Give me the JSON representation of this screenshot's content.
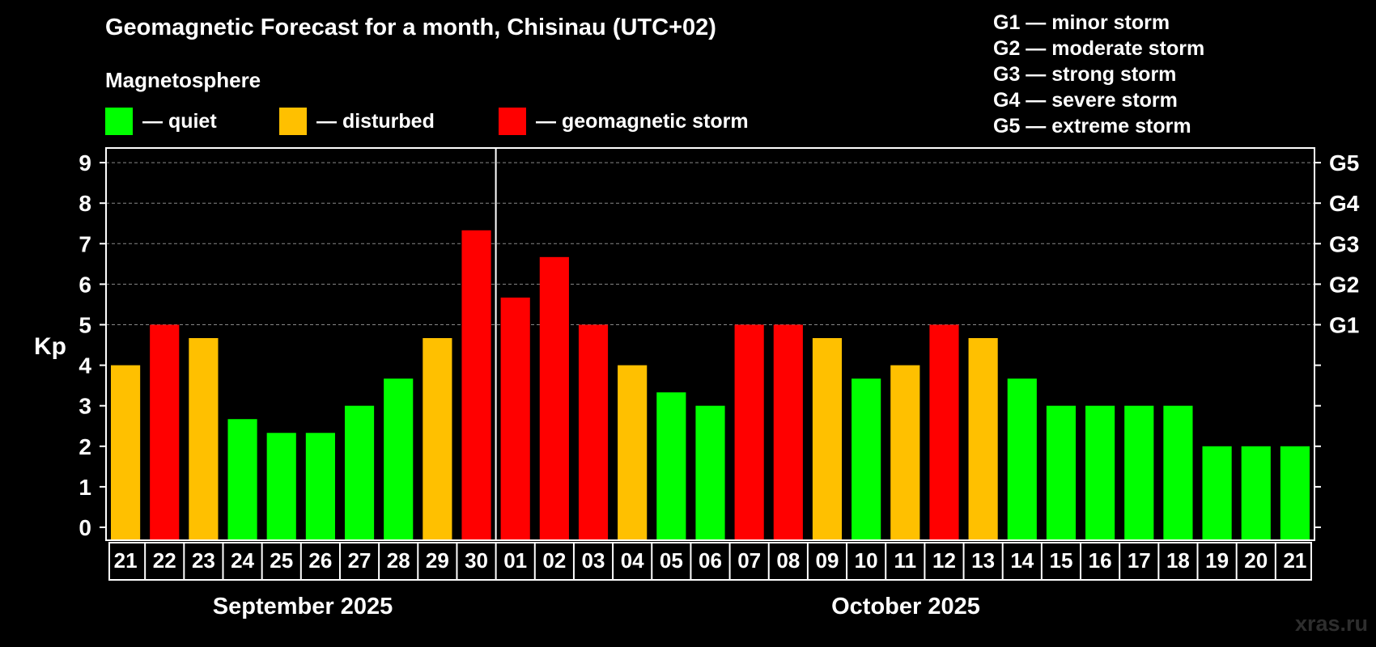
{
  "title": "Geomagnetic Forecast for a month, Chisinau (UTC+02)",
  "legend": {
    "heading": "Magnetosphere",
    "items": [
      {
        "label": "— quiet",
        "color": "#00ff00"
      },
      {
        "label": "— disturbed",
        "color": "#ffc000"
      },
      {
        "label": "— geomagnetic storm",
        "color": "#ff0000"
      }
    ]
  },
  "storm_scale": [
    "G1 — minor storm",
    "G2 — moderate storm",
    "G3 — strong storm",
    "G4 — severe storm",
    "G5 — extreme storm"
  ],
  "months": [
    "September 2025",
    "October 2025"
  ],
  "watermark": "xras.ru",
  "colors": {
    "quiet": "#00ff00",
    "disturbed": "#ffc000",
    "storm": "#ff0000",
    "background": "#000000",
    "axis": "#ffffff",
    "grid": "#888888"
  },
  "chart_data": {
    "type": "bar",
    "title": "Geomagnetic Forecast for a month, Chisinau (UTC+02)",
    "ylabel": "Kp",
    "ylim": [
      0,
      9
    ],
    "yticks": [
      "0",
      "1",
      "2",
      "3",
      "4",
      "5",
      "6",
      "7",
      "8",
      "9"
    ],
    "right_ticks": [
      {
        "kp": 5,
        "label": "G1"
      },
      {
        "kp": 6,
        "label": "G2"
      },
      {
        "kp": 7,
        "label": "G3"
      },
      {
        "kp": 8,
        "label": "G4"
      },
      {
        "kp": 9,
        "label": "G5"
      }
    ],
    "grid": true,
    "month_divider_after_index": 9,
    "categories": [
      "21",
      "22",
      "23",
      "24",
      "25",
      "26",
      "27",
      "28",
      "29",
      "30",
      "01",
      "02",
      "03",
      "04",
      "05",
      "06",
      "07",
      "08",
      "09",
      "10",
      "11",
      "12",
      "13",
      "14",
      "15",
      "16",
      "17",
      "18",
      "19",
      "20",
      "21"
    ],
    "values": [
      4.0,
      5.0,
      4.67,
      2.67,
      2.33,
      2.33,
      3.0,
      3.67,
      4.67,
      7.33,
      5.67,
      6.67,
      5.0,
      4.0,
      3.33,
      3.0,
      5.0,
      5.0,
      4.67,
      3.67,
      4.0,
      5.0,
      4.67,
      3.67,
      3.0,
      3.0,
      3.0,
      3.0,
      2.0,
      2.0,
      2.0
    ],
    "status": [
      "disturbed",
      "storm",
      "disturbed",
      "quiet",
      "quiet",
      "quiet",
      "quiet",
      "quiet",
      "disturbed",
      "storm",
      "storm",
      "storm",
      "storm",
      "disturbed",
      "quiet",
      "quiet",
      "storm",
      "storm",
      "disturbed",
      "quiet",
      "disturbed",
      "storm",
      "disturbed",
      "quiet",
      "quiet",
      "quiet",
      "quiet",
      "quiet",
      "quiet",
      "quiet",
      "quiet"
    ]
  }
}
